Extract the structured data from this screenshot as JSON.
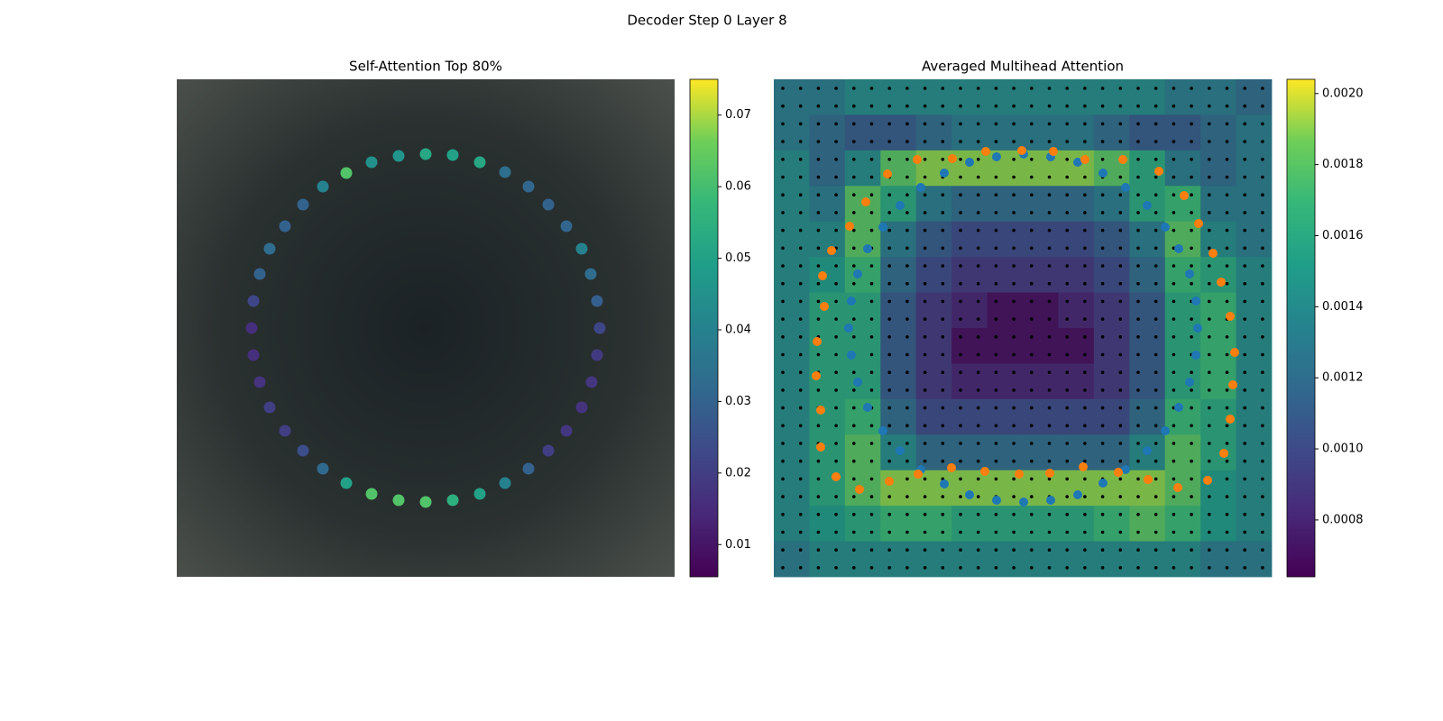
{
  "title": "Decoder Step 0 Layer 8",
  "chart_data": [
    {
      "type": "scatter",
      "title": "Self-Attention Top 80%",
      "xlim": [
        0,
        552
      ],
      "ylim": [
        0,
        552
      ],
      "x": [
        276,
        306,
        336,
        364,
        390,
        412,
        432,
        449,
        459,
        466,
        469,
        466,
        460,
        449,
        432,
        412,
        390,
        364,
        336,
        306,
        276,
        246,
        216,
        188,
        162,
        140,
        120,
        103,
        92,
        85,
        83,
        85,
        92,
        103,
        120,
        140,
        162,
        188,
        216,
        246
      ],
      "y": [
        83,
        84,
        92,
        103,
        119,
        139,
        163,
        188,
        216,
        246,
        276,
        306,
        336,
        364,
        390,
        412,
        432,
        448,
        460,
        467,
        469,
        467,
        460,
        448,
        432,
        412,
        390,
        364,
        336,
        306,
        276,
        246,
        216,
        188,
        163,
        139,
        119,
        104,
        92,
        85
      ],
      "values": [
        0.052,
        0.05,
        0.052,
        0.034,
        0.031,
        0.03,
        0.031,
        0.04,
        0.033,
        0.029,
        0.022,
        0.019,
        0.018,
        0.017,
        0.018,
        0.02,
        0.03,
        0.04,
        0.05,
        0.055,
        0.062,
        0.062,
        0.062,
        0.05,
        0.032,
        0.024,
        0.02,
        0.02,
        0.017,
        0.016,
        0.016,
        0.022,
        0.03,
        0.033,
        0.03,
        0.03,
        0.04,
        0.062,
        0.045,
        0.046
      ],
      "clim": [
        0.0055,
        0.075
      ],
      "cticks": [
        0.01,
        0.02,
        0.03,
        0.04,
        0.05,
        0.06,
        0.07
      ]
    },
    {
      "type": "heatmap",
      "title": "Averaged Multihead Attention",
      "xlim": [
        0,
        552
      ],
      "ylim": [
        0,
        552
      ],
      "z": [
        [
          0.0013,
          0.0013,
          0.0014,
          0.0014,
          0.0014,
          0.0014,
          0.0014,
          0.0014,
          0.0014,
          0.0014,
          0.0014,
          0.0013,
          0.0013,
          0.0012
        ],
        [
          0.0013,
          0.0012,
          0.0011,
          0.0011,
          0.0012,
          0.0013,
          0.0013,
          0.0013,
          0.0013,
          0.0012,
          0.0011,
          0.0011,
          0.0012,
          0.0013
        ],
        [
          0.0014,
          0.0012,
          0.0014,
          0.0018,
          0.0019,
          0.0019,
          0.0019,
          0.0019,
          0.0019,
          0.0018,
          0.0016,
          0.0013,
          0.0012,
          0.0013
        ],
        [
          0.0014,
          0.0013,
          0.0018,
          0.0016,
          0.0013,
          0.0012,
          0.0012,
          0.0012,
          0.0012,
          0.0013,
          0.0016,
          0.0017,
          0.0013,
          0.0013
        ],
        [
          0.0014,
          0.0014,
          0.0018,
          0.0013,
          0.0011,
          0.001,
          0.001,
          0.001,
          0.001,
          0.0011,
          0.0013,
          0.0018,
          0.0014,
          0.0013
        ],
        [
          0.0014,
          0.0015,
          0.0017,
          0.0012,
          0.001,
          0.0009,
          0.0009,
          0.0009,
          0.0009,
          0.001,
          0.0012,
          0.0017,
          0.0016,
          0.0014
        ],
        [
          0.0014,
          0.0016,
          0.0016,
          0.0011,
          0.0009,
          0.0008,
          0.0007,
          0.0007,
          0.0008,
          0.0009,
          0.0011,
          0.0016,
          0.0017,
          0.0014
        ],
        [
          0.0014,
          0.0016,
          0.0016,
          0.0011,
          0.0009,
          0.0007,
          0.0007,
          0.0007,
          0.0007,
          0.0009,
          0.0011,
          0.0016,
          0.0017,
          0.0014
        ],
        [
          0.0014,
          0.0016,
          0.0016,
          0.0011,
          0.0009,
          0.0008,
          0.0008,
          0.0008,
          0.0008,
          0.0009,
          0.0011,
          0.0016,
          0.0017,
          0.0014
        ],
        [
          0.0014,
          0.0016,
          0.0017,
          0.0012,
          0.001,
          0.001,
          0.001,
          0.001,
          0.001,
          0.001,
          0.0012,
          0.0017,
          0.0016,
          0.0014
        ],
        [
          0.0014,
          0.0016,
          0.0018,
          0.0014,
          0.0012,
          0.0012,
          0.0012,
          0.0012,
          0.0012,
          0.0012,
          0.0014,
          0.0018,
          0.0016,
          0.0014
        ],
        [
          0.0014,
          0.0016,
          0.0018,
          0.0019,
          0.0019,
          0.0019,
          0.0019,
          0.0019,
          0.0019,
          0.0019,
          0.0019,
          0.0018,
          0.0015,
          0.0014
        ],
        [
          0.0014,
          0.0015,
          0.0016,
          0.0017,
          0.0017,
          0.0016,
          0.0016,
          0.0016,
          0.0016,
          0.0017,
          0.0018,
          0.0017,
          0.0015,
          0.0014
        ],
        [
          0.0013,
          0.0014,
          0.0014,
          0.0014,
          0.0014,
          0.0014,
          0.0014,
          0.0014,
          0.0014,
          0.0014,
          0.0014,
          0.0014,
          0.0013,
          0.0013
        ]
      ],
      "clim": [
        0.00064,
        0.00204
      ],
      "cticks": [
        {
          "value": 0.002,
          "label": "0.0020"
        },
        0.0018,
        0.0016,
        0.0014,
        0.0012,
        {
          "value": 0.001,
          "label": "0.0010"
        },
        0.0008
      ],
      "series": [
        {
          "color": "#1f77b4",
          "x": [
            217,
            247,
            277,
            307,
            337,
            365,
            390,
            414,
            434,
            449,
            461,
            468,
            470,
            468,
            461,
            449,
            434,
            414,
            390,
            365,
            337,
            307,
            277,
            247,
            217,
            189,
            163,
            140,
            121,
            104,
            93,
            86,
            83,
            86,
            93,
            104,
            121,
            140,
            163,
            189
          ],
          "y": [
            92,
            86,
            83,
            86,
            92,
            104,
            120,
            140,
            164,
            188,
            216,
            246,
            276,
            306,
            336,
            364,
            390,
            412,
            433,
            448,
            461,
            467,
            469,
            467,
            461,
            449,
            433,
            412,
            390,
            364,
            336,
            306,
            276,
            246,
            216,
            188,
            164,
            140,
            120,
            104
          ]
        },
        {
          "color": "#ff7f0e",
          "x": [
            159,
            198,
            235,
            275,
            310,
            345,
            387,
            427,
            455,
            471,
            487,
            496,
            506,
            511,
            509,
            506,
            499,
            481,
            448,
            415,
            382,
            343,
            306,
            272,
            234,
            197,
            160,
            128,
            95,
            69,
            52,
            52,
            47,
            48,
            56,
            54,
            64,
            84,
            102,
            126
          ],
          "y": [
            89,
            88,
            80,
            79,
            80,
            89,
            89,
            102,
            129,
            160,
            193,
            225,
            263,
            303,
            339,
            377,
            415,
            445,
            453,
            444,
            436,
            430,
            437,
            438,
            435,
            431,
            438,
            446,
            455,
            441,
            408,
            367,
            329,
            291,
            252,
            218,
            190,
            163,
            136,
            105
          ]
        }
      ]
    }
  ]
}
